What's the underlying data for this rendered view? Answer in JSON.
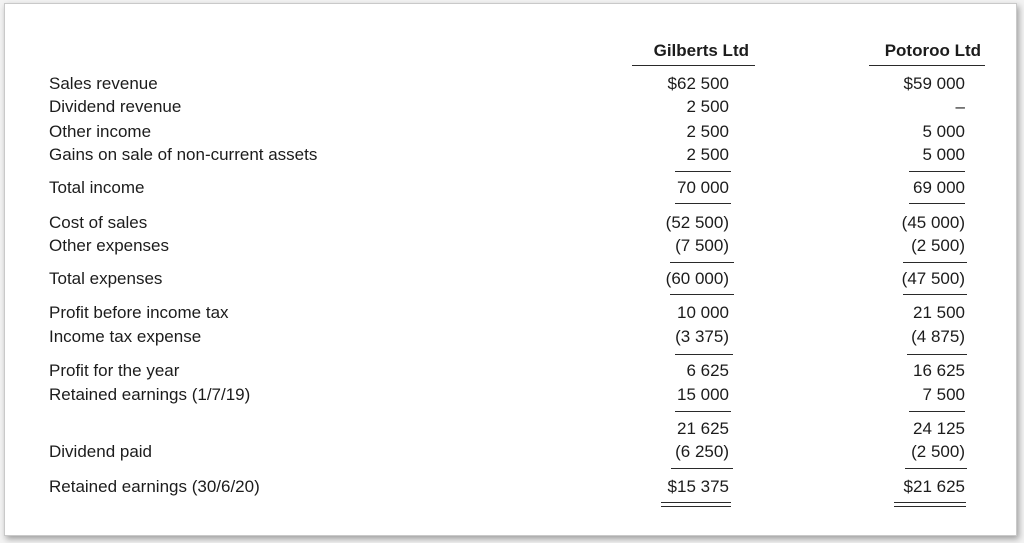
{
  "columns": {
    "col1": "Gilberts Ltd",
    "col2": "Potoroo Ltd"
  },
  "rows": [
    {
      "label": "Sales revenue",
      "col1": "$62 500",
      "col2": "$59 000"
    },
    {
      "label": "Dividend revenue",
      "col1": "2 500",
      "col2": "–"
    },
    {
      "label": "Other income",
      "col1": "2 500",
      "col2": "5 000"
    },
    {
      "label": "Gains on sale of non-current assets",
      "col1": "2 500",
      "col2": "5 000"
    },
    {
      "label": "Total income",
      "col1": "70 000",
      "col2": "69 000"
    },
    {
      "label": "Cost of sales",
      "col1": "(52 500)",
      "col2": "(45 000)"
    },
    {
      "label": "Other expenses",
      "col1": "(7 500)",
      "col2": "(2 500)"
    },
    {
      "label": "Total expenses",
      "col1": "(60 000)",
      "col2": "(47 500)"
    },
    {
      "label": "Profit before income tax",
      "col1": "10 000",
      "col2": "21 500"
    },
    {
      "label": "Income tax expense",
      "col1": "(3 375)",
      "col2": "(4 875)"
    },
    {
      "label": "Profit for the year",
      "col1": "6 625",
      "col2": "16 625"
    },
    {
      "label": "Retained earnings (1/7/19)",
      "col1": "15 000",
      "col2": "7 500"
    },
    {
      "label": "",
      "col1": "21 625",
      "col2": "24 125"
    },
    {
      "label": "Dividend paid",
      "col1": "(6 250)",
      "col2": "(2 500)"
    },
    {
      "label": "Retained earnings (30/6/20)",
      "col1": "$15 375",
      "col2": "$21 625"
    }
  ]
}
